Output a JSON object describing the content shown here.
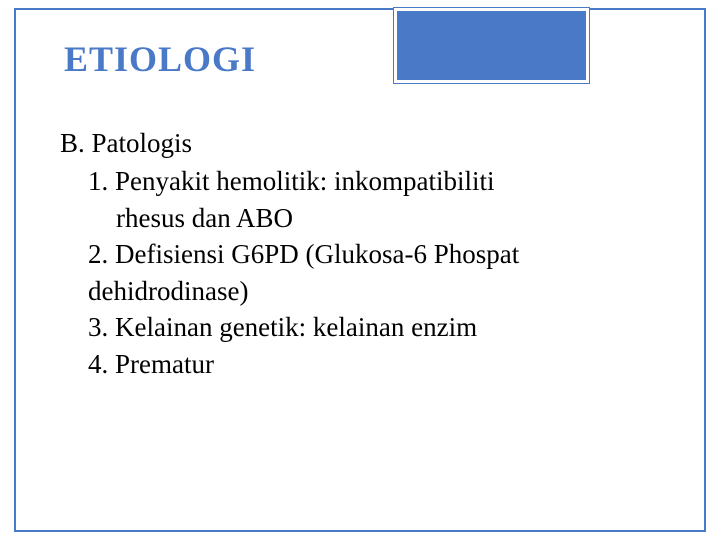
{
  "slide": {
    "title": "ETIOLOGI",
    "section": "B. Patologis",
    "items": {
      "i1a": "1. Penyakit hemolitik: inkompatibiliti",
      "i1b": "rhesus dan ABO",
      "i2a": "2. Defisiensi G6PD (Glukosa-6 Phospat",
      "i2b": "dehidrodinase)",
      "i3": "3. Kelainan genetik: kelainan enzim",
      "i4": "4. Prematur"
    }
  },
  "style": {
    "accent_color": "#4a7ac7",
    "background": "#ffffff",
    "text_color": "#000000",
    "title_fontsize": 36,
    "body_fontsize": 27,
    "font_family": "Times New Roman",
    "slide_width": 720,
    "slide_height": 540
  }
}
